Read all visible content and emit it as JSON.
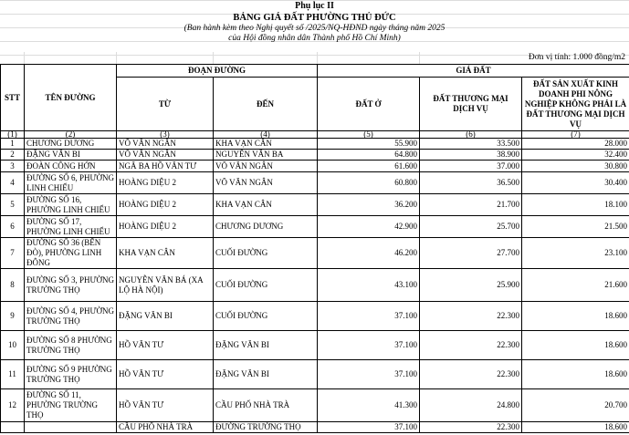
{
  "appendix": "Phụ lục II",
  "title": "BẢNG GIÁ ĐẤT PHƯỜNG THỦ ĐỨC",
  "subtitle1": "(Ban hành kèm theo Nghị quyết số     /2025/NQ-HĐND ngày     tháng     năm 2025",
  "subtitle2": "của Hội đồng nhân dân Thành phố Hồ Chí Minh)",
  "unit": "Đơn vị tính: 1.000 đồng/m2",
  "headers": {
    "stt": "STT",
    "name": "TÊN ĐƯỜNG",
    "segment": "ĐOẠN ĐƯỜNG",
    "from": "TỪ",
    "to": "ĐẾN",
    "price": "GIÁ ĐẤT",
    "residential": "ĐẤT Ở",
    "commercial": "ĐẤT THƯƠNG MẠI DỊCH VỤ",
    "nonagri": "ĐẤT SẢN XUẤT KINH DOANH PHI NÔNG NGHIỆP KHÔNG PHẢI LÀ ĐẤT THƯƠNG MẠI DỊCH VỤ"
  },
  "index": [
    "(1)",
    "(2)",
    "(3)",
    "(4)",
    "(5)",
    "(6)",
    "(7)"
  ],
  "rows": [
    {
      "stt": "1",
      "name": "CHƯƠNG DƯƠNG",
      "from": "VÕ VĂN NGÂN",
      "to": "KHA VẠN CÂN",
      "r": "55.900",
      "c": "33.500",
      "n": "28.000"
    },
    {
      "stt": "2",
      "name": "ĐẶNG VĂN BI",
      "from": "VÕ VĂN NGÂN",
      "to": "NGUYỄN VĂN BA",
      "r": "64.800",
      "c": "38.900",
      "n": "32.400"
    },
    {
      "stt": "3",
      "name": "ĐOÀN CÔNG HỚN",
      "from": "NGÃ BA HỒ VĂN TƯ",
      "to": "VÕ VĂN NGÂN",
      "r": "61.600",
      "c": "37.000",
      "n": "30.800"
    },
    {
      "stt": "4",
      "name": "ĐƯỜNG SỐ 6, PHƯỜNG LINH CHIỂU",
      "from": "HOÀNG DIỆU 2",
      "to": "VÕ VĂN NGÂN",
      "r": "60.800",
      "c": "36.500",
      "n": "30.400"
    },
    {
      "stt": "5",
      "name": "ĐƯỜNG SỐ 16, PHƯỜNG LINH CHIỂU",
      "from": "HOÀNG DIỆU 2",
      "to": "KHA VẠN CÂN",
      "r": "36.200",
      "c": "21.700",
      "n": "18.100"
    },
    {
      "stt": "6",
      "name": "ĐƯỜNG SỐ 17, PHƯỜNG LINH CHIỂU",
      "from": "HOÀNG DIỆU 2",
      "to": "CHƯƠNG DƯƠNG",
      "r": "42.900",
      "c": "25.700",
      "n": "21.500"
    },
    {
      "stt": "7",
      "name": "ĐƯỜNG SỐ 36 (BẾN ĐÒ), PHƯỜNG LINH ĐÔNG",
      "from": "KHA VẠN CÂN",
      "to": "CUỐI ĐƯỜNG",
      "r": "46.200",
      "c": "27.700",
      "n": "23.100"
    },
    {
      "stt": "8",
      "name": "ĐƯỜNG SỐ 3, PHƯỜNG TRƯỜNG THỌ",
      "from": "NGUYỄN VĂN BÁ (XA LỘ HÀ NỘI)",
      "to": "CUỐI ĐƯỜNG",
      "r": "43.100",
      "c": "25.900",
      "n": "21.600"
    },
    {
      "stt": "9",
      "name": "ĐƯỜNG SỐ 4, PHƯỜNG TRƯỜNG THỌ",
      "from": "ĐẶNG VĂN BI",
      "to": "CUỐI ĐƯỜNG",
      "r": "37.100",
      "c": "22.300",
      "n": "18.600"
    },
    {
      "stt": "10",
      "name": "ĐƯỜNG SỐ 8 PHƯỜNG TRƯỜNG THỌ",
      "from": "HỒ VĂN TƯ",
      "to": "ĐẶNG VĂN BI",
      "r": "37.100",
      "c": "22.300",
      "n": "18.600"
    },
    {
      "stt": "11",
      "name": "ĐƯỜNG SỐ 9 PHƯỜNG TRƯỜNG THỌ",
      "from": "HỒ VĂN TƯ",
      "to": "ĐẶNG VĂN BI",
      "r": "37.100",
      "c": "22.300",
      "n": "18.600"
    },
    {
      "stt": "12",
      "name": "ĐƯỜNG SỐ 11, PHƯỜNG TRƯỜNG THỌ",
      "from": "HỒ VĂN TƯ",
      "to": "CẦU PHỐ NHÀ TRÀ",
      "r": "41.300",
      "c": "24.800",
      "n": "20.700"
    },
    {
      "stt": "",
      "name": "",
      "from": "CẦU PHỐ NHÀ TRÀ",
      "to": "ĐƯỜNG TRƯỜNG THỌ",
      "r": "37.100",
      "c": "22.300",
      "n": "18.600"
    }
  ]
}
